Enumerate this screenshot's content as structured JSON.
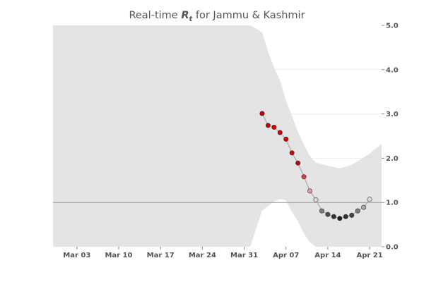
{
  "chart_data": {
    "type": "line",
    "title": {
      "prefix": "Real-time ",
      "symbol": "R",
      "subscript": "t",
      "suffix": " for Jammu & Kashmir"
    },
    "xlabel": "",
    "ylabel": "",
    "x_range": [
      "2020-02-28",
      "2020-04-23"
    ],
    "x_ticks": [
      "Mar 03",
      "Mar 10",
      "Mar 17",
      "Mar 24",
      "Mar 31",
      "Apr 07",
      "Apr 14",
      "Apr 21"
    ],
    "x_tick_dates": [
      "2020-03-03",
      "2020-03-10",
      "2020-03-17",
      "2020-03-24",
      "2020-03-31",
      "2020-04-07",
      "2020-04-14",
      "2020-04-21"
    ],
    "ylim": [
      0,
      5
    ],
    "y_ticks": [
      "0.0",
      "1.0",
      "2.0",
      "3.0",
      "4.0",
      "5.0"
    ],
    "y_axis_side": "right",
    "grid": "horizontal",
    "reference_line": 1.0,
    "colors": {
      "band": "#e4e4e4",
      "line": "#a8a8a8",
      "reference": "#999999",
      "high": "#cc0000",
      "neutral": "#e8e8e8",
      "low": "#222222"
    },
    "series": [
      {
        "points": [
          {
            "date": "2020-04-03",
            "value": 3.01
          },
          {
            "date": "2020-04-04",
            "value": 2.74
          },
          {
            "date": "2020-04-05",
            "value": 2.7
          },
          {
            "date": "2020-04-06",
            "value": 2.58
          },
          {
            "date": "2020-04-07",
            "value": 2.43
          },
          {
            "date": "2020-04-08",
            "value": 2.12
          },
          {
            "date": "2020-04-09",
            "value": 1.89
          },
          {
            "date": "2020-04-10",
            "value": 1.58
          },
          {
            "date": "2020-04-11",
            "value": 1.26
          },
          {
            "date": "2020-04-12",
            "value": 1.06
          },
          {
            "date": "2020-04-13",
            "value": 0.81
          },
          {
            "date": "2020-04-14",
            "value": 0.73
          },
          {
            "date": "2020-04-15",
            "value": 0.68
          },
          {
            "date": "2020-04-16",
            "value": 0.64
          },
          {
            "date": "2020-04-17",
            "value": 0.68
          },
          {
            "date": "2020-04-18",
            "value": 0.71
          },
          {
            "date": "2020-04-19",
            "value": 0.81
          },
          {
            "date": "2020-04-20",
            "value": 0.89
          },
          {
            "date": "2020-04-21",
            "value": 1.07
          }
        ]
      }
    ],
    "credible_interval": [
      {
        "date": "2020-02-28",
        "low": 0.0,
        "high": 5.0
      },
      {
        "date": "2020-04-01",
        "low": 0.0,
        "high": 5.0
      },
      {
        "date": "2020-03-26",
        "low": 0.0,
        "high": 5.0
      },
      {
        "date": "2020-04-03",
        "low": 0.82,
        "high": 4.85
      },
      {
        "date": "2020-04-04",
        "low": 0.92,
        "high": 4.4
      },
      {
        "date": "2020-04-05",
        "low": 1.02,
        "high": 4.05
      },
      {
        "date": "2020-04-06",
        "low": 1.08,
        "high": 3.75
      },
      {
        "date": "2020-04-07",
        "low": 1.05,
        "high": 3.3
      },
      {
        "date": "2020-04-08",
        "low": 0.78,
        "high": 2.95
      },
      {
        "date": "2020-04-09",
        "low": 0.58,
        "high": 2.6
      },
      {
        "date": "2020-04-10",
        "low": 0.3,
        "high": 2.3
      },
      {
        "date": "2020-04-11",
        "low": 0.1,
        "high": 2.05
      },
      {
        "date": "2020-04-12",
        "low": 0.0,
        "high": 1.9
      },
      {
        "date": "2020-04-15",
        "low": 0.0,
        "high": 1.8
      },
      {
        "date": "2020-04-16",
        "low": 0.0,
        "high": 1.77
      },
      {
        "date": "2020-04-18",
        "low": 0.0,
        "high": 1.85
      },
      {
        "date": "2020-04-21",
        "low": 0.0,
        "high": 2.1
      },
      {
        "date": "2020-04-23",
        "low": 0.0,
        "high": 2.33
      }
    ]
  }
}
